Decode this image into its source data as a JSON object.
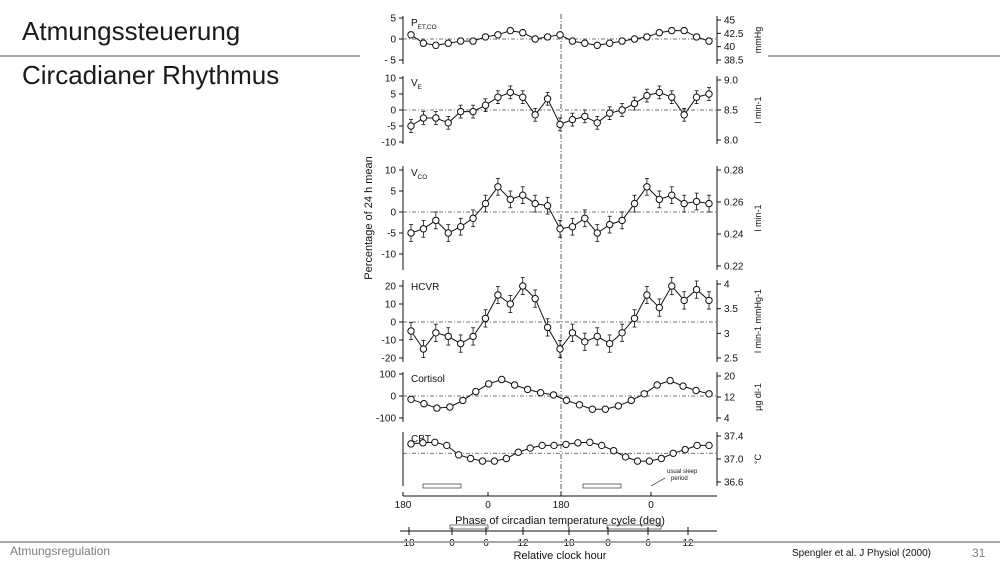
{
  "slide": {
    "title_line1": "Atmungssteuerung",
    "title_line2": "Circadianer Rhythmus",
    "footer_left": "Atmungsregulation",
    "citation": "Spengler et al. J Physiol (2000)",
    "page_number": "31"
  },
  "chart_data": {
    "type": "line",
    "ylabel": "Percentage of 24 h mean",
    "xlabel": "Phase of circadian temperature cycle (deg)",
    "x_ticks": [
      "180",
      "0",
      "180",
      "0"
    ],
    "clock_axis_label": "Relative clock hour",
    "clock_ticks": [
      "18",
      "0",
      "6",
      "12",
      "18",
      "0",
      "6",
      "12"
    ],
    "sleep_note": [
      "usual sleep",
      "period"
    ],
    "panels": [
      {
        "name": "PET,CO2",
        "label_main": "P",
        "label_sub": "ET,CO",
        "ylim": [
          -5,
          5
        ],
        "y_ticks": [
          "5",
          "0",
          "- 5"
        ],
        "right_ticks": [
          "45",
          "42.5",
          "40",
          "38.5"
        ],
        "right_unit": "mmHg",
        "values": [
          1,
          -1,
          -1.5,
          -1,
          -0.5,
          -0.5,
          0.5,
          1,
          2,
          1.5,
          0,
          0.5,
          1,
          -0.5,
          -1,
          -1.5,
          -1,
          -0.5,
          0,
          0.5,
          1.5,
          2,
          2,
          0.5,
          -0.5
        ]
      },
      {
        "name": "VE",
        "label_main": "V",
        "label_sub": "E",
        "ylim": [
          -10,
          10
        ],
        "y_ticks": [
          "10",
          "5",
          "0",
          "-5",
          "-10"
        ],
        "right_ticks": [
          "9.0",
          "8.5",
          "8.0"
        ],
        "right_unit": "l min-1",
        "values": [
          -5,
          -2.5,
          -2.5,
          -4,
          -0.5,
          -0.5,
          1.5,
          4,
          5.5,
          4,
          -1.5,
          3.5,
          -4.5,
          -3,
          -2,
          -4,
          -1,
          0,
          2,
          4.5,
          5.5,
          4,
          -1.5,
          4,
          5
        ]
      },
      {
        "name": "VCO2",
        "label_main": "V",
        "label_sub": "CO",
        "ylim": [
          -10,
          10
        ],
        "y_ticks": [
          "10",
          "5",
          "0",
          "-5",
          "-10"
        ],
        "right_ticks": [
          "0.28",
          "0.26",
          "0.24",
          "0.22"
        ],
        "right_unit": "l min-1",
        "values": [
          -5,
          -4,
          -2,
          -5,
          -3.5,
          -1.5,
          2,
          6,
          3,
          4,
          2,
          1.5,
          -4,
          -3.5,
          -1.5,
          -5,
          -3,
          -2,
          2,
          6,
          3,
          4,
          2,
          2.5,
          2
        ]
      },
      {
        "name": "HCVR",
        "label_main": "HCVR",
        "label_sub": "",
        "ylim": [
          -20,
          20
        ],
        "y_ticks": [
          "20",
          "10",
          "0",
          "-10",
          "-20"
        ],
        "right_ticks": [
          "4",
          "3.5",
          "3",
          "2.5"
        ],
        "right_unit": "l min-1 mmHg-1",
        "values": [
          -5,
          -15,
          -6,
          -8,
          -12,
          -8,
          2,
          15,
          10,
          20,
          13,
          -3,
          -15,
          -6,
          -11,
          -8,
          -12,
          -6,
          2,
          15,
          8,
          20,
          12,
          18,
          12
        ]
      },
      {
        "name": "Cortisol",
        "label_main": "Cortisol",
        "label_sub": "",
        "ylim": [
          -100,
          100
        ],
        "y_ticks": [
          "100",
          "0",
          "-100"
        ],
        "right_ticks": [
          "20",
          "12",
          "4"
        ],
        "right_unit": "µg dl-1",
        "values": [
          -15,
          -35,
          -55,
          -50,
          -20,
          20,
          55,
          75,
          50,
          30,
          15,
          5,
          -20,
          -40,
          -60,
          -60,
          -45,
          -20,
          10,
          50,
          70,
          45,
          25,
          10
        ]
      },
      {
        "name": "CBT",
        "label_main": "CBT",
        "label_sub": "",
        "ylim": [
          36.6,
          37.5
        ],
        "right_ticks": [
          "37.4",
          "37.0",
          "36.6"
        ],
        "right_unit": "°C",
        "values": [
          37.33,
          37.35,
          37.36,
          37.3,
          37.12,
          37.05,
          37.0,
          37.0,
          37.05,
          37.17,
          37.25,
          37.3,
          37.3,
          37.32,
          37.35,
          37.36,
          37.3,
          37.2,
          37.08,
          37.0,
          37.0,
          37.05,
          37.15,
          37.22,
          37.3,
          37.3
        ]
      }
    ]
  }
}
